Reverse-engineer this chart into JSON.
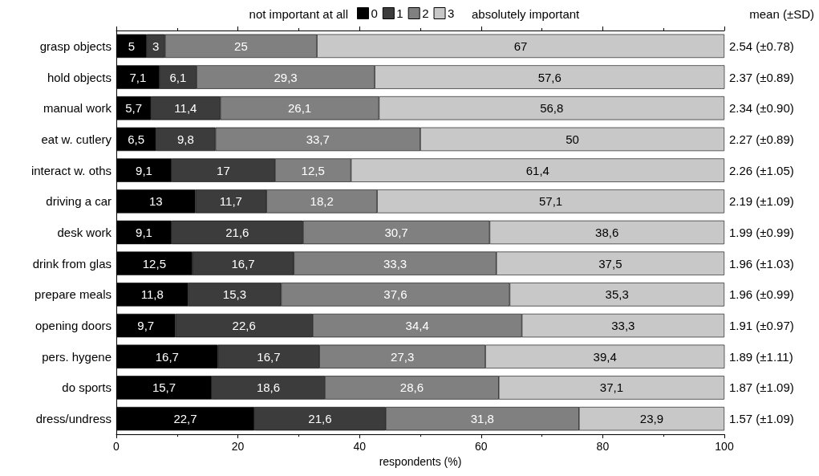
{
  "chart_data": {
    "type": "bar",
    "orientation": "horizontal",
    "stacked": true,
    "categories": [
      "grasp objects",
      "hold objects",
      "manual work",
      "eat w. cutlery",
      "interact w. oths",
      "driving a car",
      "desk work",
      "drink from glas",
      "prepare meals",
      "opening doors",
      "pers. hygene",
      "do sports",
      "dress/undress"
    ],
    "series": [
      {
        "name": "0",
        "color": "#000000",
        "values": [
          5,
          7.1,
          5.7,
          6.5,
          9.1,
          13,
          9.1,
          12.5,
          11.8,
          9.7,
          16.7,
          15.7,
          22.7
        ],
        "value_labels": [
          "5",
          "7,1",
          "5,7",
          "6,5",
          "9,1",
          "13",
          "9,1",
          "12,5",
          "11,8",
          "9,7",
          "16,7",
          "15,7",
          "22,7"
        ]
      },
      {
        "name": "1",
        "color": "#3c3c3c",
        "values": [
          3,
          6.1,
          11.4,
          9.8,
          17,
          11.7,
          21.6,
          16.7,
          15.3,
          22.6,
          16.7,
          18.6,
          21.6
        ],
        "value_labels": [
          "3",
          "6,1",
          "11,4",
          "9,8",
          "17",
          "11,7",
          "21,6",
          "16,7",
          "15,3",
          "22,6",
          "16,7",
          "18,6",
          "21,6"
        ]
      },
      {
        "name": "2",
        "color": "#808080",
        "values": [
          25,
          29.3,
          26.1,
          33.7,
          12.5,
          18.2,
          30.7,
          33.3,
          37.6,
          34.4,
          27.3,
          28.6,
          31.8
        ],
        "value_labels": [
          "25",
          "29,3",
          "26,1",
          "33,7",
          "12,5",
          "18,2",
          "30,7",
          "33,3",
          "37,6",
          "34,4",
          "27,3",
          "28,6",
          "31,8"
        ]
      },
      {
        "name": "3",
        "color": "#c8c8c8",
        "values": [
          67,
          57.6,
          56.8,
          50,
          61.4,
          57.1,
          38.6,
          37.5,
          35.3,
          33.3,
          39.4,
          37.1,
          23.9
        ],
        "value_labels": [
          "67",
          "57,6",
          "56,8",
          "50",
          "61,4",
          "57,1",
          "38,6",
          "37,5",
          "35,3",
          "33,3",
          "39,4",
          "37,1",
          "23,9"
        ]
      }
    ],
    "xlim": [
      0,
      100
    ],
    "xticks": [
      0,
      20,
      40,
      60,
      80,
      100
    ],
    "xlabel": "respondents (%)",
    "legend": "top",
    "legend_title": "not important at all",
    "y2label": "mean (±SD)",
    "annotations": [
      "absolutely important",
      "2.54 (±0.78)",
      "2.37 (±0.89)",
      "2.34 (±0.90)",
      "2.27 (±0.89)",
      "2.26 (±1.05)",
      "2.19 (±1.09)",
      "1.99 (±0.99)",
      "1.96 (±1.03)",
      "1.96 (±0.99)",
      "1.91 (±0.97)",
      "1.89 (±1.11)",
      "1.87 (±1.09)",
      "1.57 (±1.09)"
    ],
    "grid": false
  }
}
